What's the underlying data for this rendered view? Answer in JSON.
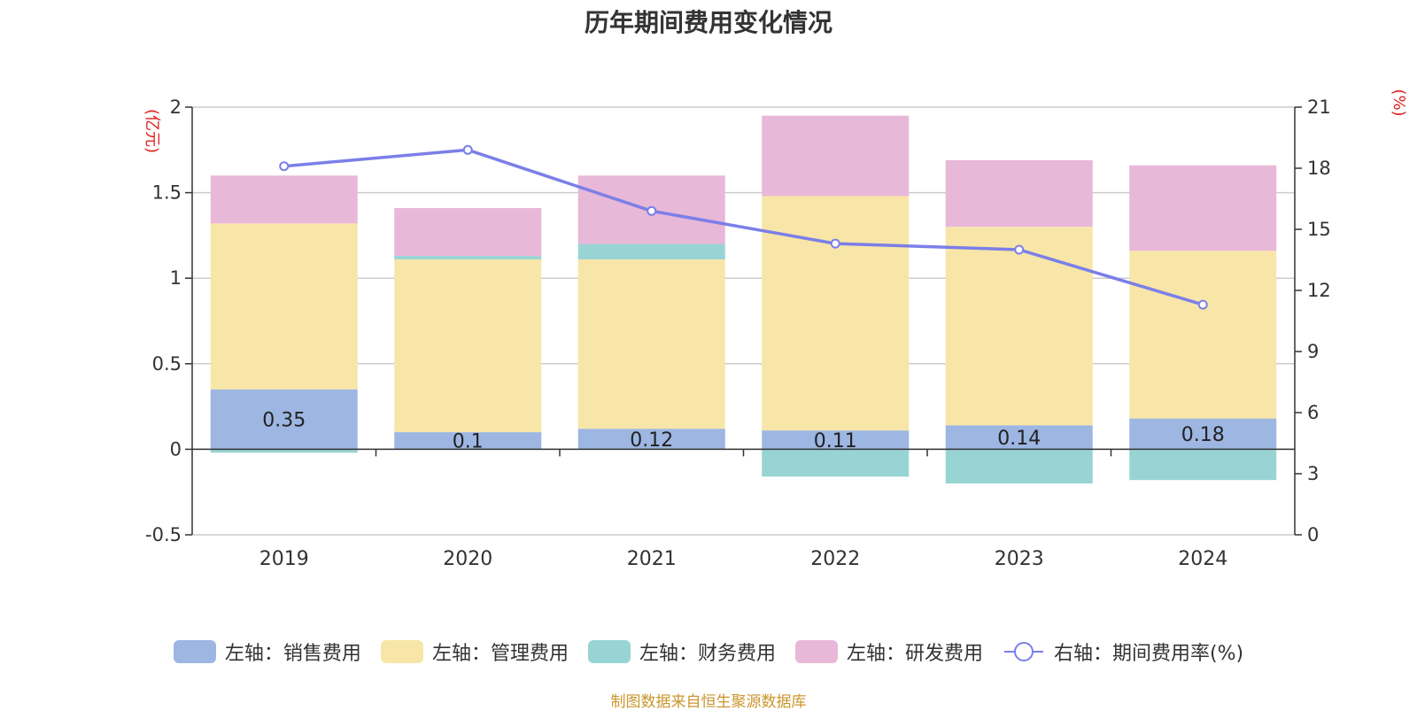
{
  "chart_data": {
    "type": "bar",
    "title": "历年期间费用变化情况",
    "categories": [
      "2019",
      "2020",
      "2021",
      "2022",
      "2023",
      "2024"
    ],
    "left_axis": {
      "unit_label": "(亿元)",
      "ylim": [
        -0.5,
        2
      ],
      "ticks": [
        "-0.5",
        "0",
        "0.5",
        "1",
        "1.5",
        "2"
      ]
    },
    "right_axis": {
      "unit_label": "(%)",
      "ylim": [
        0,
        21
      ],
      "ticks": [
        "0",
        "3",
        "6",
        "9",
        "12",
        "15",
        "18",
        "21"
      ]
    },
    "series": [
      {
        "name": "左轴：销售费用",
        "type": "bar",
        "color": "#9db6e2",
        "values": [
          0.35,
          0.1,
          0.12,
          0.11,
          0.14,
          0.18
        ],
        "labels": [
          "0.35",
          "0.1",
          "0.12",
          "0.11",
          "0.14",
          "0.18"
        ]
      },
      {
        "name": "左轴：管理费用",
        "type": "bar",
        "color": "#f8e6a8",
        "values": [
          0.97,
          1.01,
          0.99,
          1.37,
          1.16,
          0.98
        ]
      },
      {
        "name": "左轴：财务费用",
        "type": "bar",
        "color": "#99d4d4",
        "values": [
          -0.02,
          0.02,
          0.09,
          -0.16,
          -0.2,
          -0.18
        ]
      },
      {
        "name": "左轴：研发费用",
        "type": "bar",
        "color": "#e8b8d8",
        "values": [
          0.28,
          0.28,
          0.4,
          0.47,
          0.39,
          0.5
        ]
      },
      {
        "name": "右轴：期间费用率(%)",
        "type": "line",
        "color": "#7b7fe8",
        "values": [
          18.1,
          18.9,
          15.9,
          14.3,
          14.0,
          11.3
        ]
      }
    ],
    "grid": true,
    "legend_position": "bottom"
  },
  "source_text": "制图数据来自恒生聚源数据库"
}
